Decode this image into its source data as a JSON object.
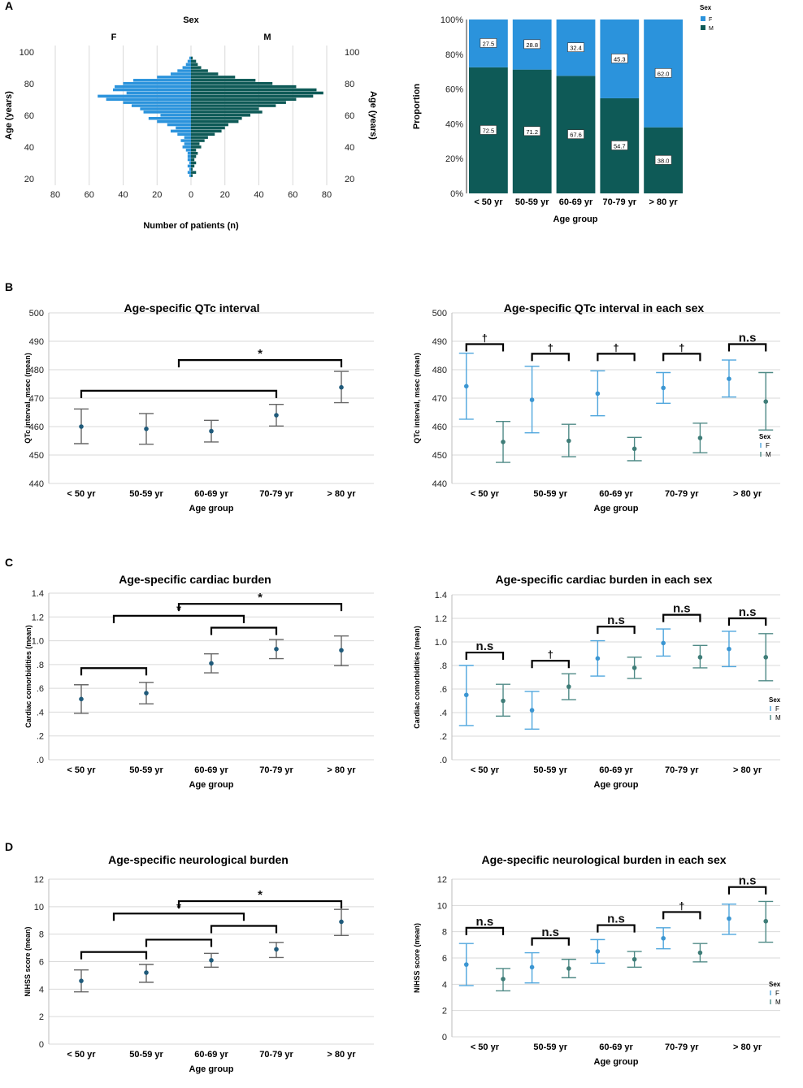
{
  "colors": {
    "female": "#2b93dc",
    "male": "#0e5a57",
    "mean_point": "#1f5a7a",
    "errorbar": "#666666",
    "grid": "#d9d9d9",
    "bracket": "#000000"
  },
  "panel_labels": [
    "A",
    "B",
    "C",
    "D"
  ],
  "age_groups": [
    "< 50 yr",
    "50-59 yr",
    "60-69 yr",
    "70-79 yr",
    "> 80 yr"
  ],
  "chart_data": [
    {
      "id": "A1",
      "type": "bar",
      "title": "Sex",
      "subtype": "population-pyramid",
      "left_label": "F",
      "right_label": "M",
      "xlabel": "Number of patients (n)",
      "ylabel_left": "Age (years)",
      "ylabel_right": "Age (years)",
      "xticks": [
        "80",
        "60",
        "40",
        "20",
        "0",
        "20",
        "40",
        "60",
        "80"
      ],
      "yticks": [
        "20",
        "40",
        "60",
        "80",
        "100"
      ],
      "ylim": [
        16,
        104
      ],
      "xlim": [
        -80,
        80
      ],
      "ages": [
        22,
        24,
        26,
        28,
        30,
        32,
        34,
        36,
        38,
        40,
        42,
        44,
        46,
        48,
        50,
        52,
        54,
        56,
        58,
        60,
        62,
        64,
        66,
        68,
        70,
        72,
        74,
        76,
        78,
        80,
        82,
        84,
        86,
        88,
        90,
        92,
        94,
        96
      ],
      "female": [
        1,
        2,
        1,
        2,
        1,
        2,
        2,
        2,
        3,
        5,
        4,
        6,
        4,
        8,
        12,
        9,
        14,
        20,
        25,
        18,
        28,
        30,
        35,
        40,
        50,
        55,
        38,
        46,
        45,
        40,
        34,
        20,
        12,
        8,
        5,
        3,
        2,
        1
      ],
      "male": [
        1,
        3,
        1,
        2,
        3,
        2,
        3,
        4,
        3,
        6,
        5,
        8,
        10,
        14,
        18,
        20,
        22,
        28,
        30,
        35,
        42,
        40,
        50,
        56,
        62,
        72,
        78,
        74,
        62,
        48,
        38,
        26,
        16,
        10,
        6,
        4,
        3,
        1
      ]
    },
    {
      "id": "A2",
      "type": "bar",
      "subtype": "stacked-100",
      "legend_title": "Sex",
      "legend": [
        "F",
        "M"
      ],
      "xlabel": "Age group",
      "ylabel": "Proportion",
      "yticks": [
        "0%",
        "20%",
        "40%",
        "60%",
        "80%",
        "100%"
      ],
      "ylim": [
        0,
        100
      ],
      "categories": [
        "< 50 yr",
        "50-59 yr",
        "60-69 yr",
        "70-79 yr",
        "> 80 yr"
      ],
      "series": [
        {
          "name": "M",
          "values": [
            72.5,
            71.2,
            67.6,
            54.7,
            38.0
          ],
          "labels": [
            "72.5",
            "71.2",
            "67.6",
            "54.7",
            "38.0"
          ]
        },
        {
          "name": "F",
          "values": [
            27.5,
            28.8,
            32.4,
            45.3,
            62.0
          ],
          "labels": [
            "27.5",
            "28.8",
            "32.4",
            "45.3",
            "62.0"
          ]
        }
      ]
    },
    {
      "id": "B1",
      "type": "scatter",
      "subtype": "errorbar",
      "title": "Age-specific QTc interval",
      "xlabel": "Age group",
      "ylabel": "QTc interval, msec (mean)",
      "yticks": [
        "440",
        "450",
        "460",
        "470",
        "480",
        "490",
        "500"
      ],
      "ylim": [
        440,
        500
      ],
      "categories": [
        "< 50 yr",
        "50-59 yr",
        "60-69 yr",
        "70-79 yr",
        "> 80 yr"
      ],
      "series": [
        {
          "name": "All",
          "mean": [
            460,
            459.2,
            458.4,
            464,
            473.8
          ],
          "low": [
            454,
            453.8,
            454.6,
            460.2,
            468.4
          ],
          "high": [
            466.2,
            464.6,
            462.2,
            467.8,
            479.4
          ]
        }
      ],
      "annotations": [
        {
          "from": 0,
          "to": 3,
          "y": 472.6,
          "text": ""
        },
        {
          "from": 1.5,
          "to": 4,
          "y": 483.4,
          "text": "*"
        }
      ]
    },
    {
      "id": "B2",
      "type": "scatter",
      "subtype": "errorbar",
      "title": "Age-specific QTc interval in each sex",
      "xlabel": "Age group",
      "ylabel": "QTc interval, msec (mean)",
      "legend_title": "Sex",
      "legend": [
        "F",
        "M"
      ],
      "yticks": [
        "440",
        "450",
        "460",
        "470",
        "480",
        "490",
        "500"
      ],
      "ylim": [
        440,
        500
      ],
      "categories": [
        "< 50 yr",
        "50-59 yr",
        "60-69 yr",
        "70-79 yr",
        "> 80 yr"
      ],
      "series": [
        {
          "name": "F",
          "mean": [
            474.2,
            469.4,
            471.6,
            473.6,
            476.8
          ],
          "low": [
            462.6,
            457.8,
            463.8,
            468.2,
            470.4
          ],
          "high": [
            485.8,
            481.2,
            479.6,
            479,
            483.4
          ]
        },
        {
          "name": "M",
          "mean": [
            454.6,
            455,
            452.2,
            456,
            468.8
          ],
          "low": [
            447.4,
            449.4,
            448,
            450.8,
            458.8
          ],
          "high": [
            461.8,
            460.8,
            456.2,
            461.2,
            479
          ]
        }
      ],
      "annotations": [
        {
          "from": 0,
          "to": 0,
          "y": 489,
          "text": "†"
        },
        {
          "from": 1,
          "to": 1,
          "y": 485.6,
          "text": "†"
        },
        {
          "from": 2,
          "to": 2,
          "y": 485.6,
          "text": "†"
        },
        {
          "from": 3,
          "to": 3,
          "y": 485.6,
          "text": "†"
        },
        {
          "from": 4,
          "to": 4,
          "y": 489,
          "text": "n.s"
        }
      ]
    },
    {
      "id": "C1",
      "type": "scatter",
      "subtype": "errorbar",
      "title": "Age-specific cardiac burden",
      "xlabel": "Age group",
      "ylabel": "Cardiac comorbidities (mean)",
      "yticks": [
        ".0",
        ".2",
        ".4",
        ".6",
        ".8",
        "1.0",
        "1.2",
        "1.4"
      ],
      "ylim": [
        0,
        1.4
      ],
      "categories": [
        "< 50 yr",
        "50-59 yr",
        "60-69 yr",
        "70-79 yr",
        "> 80 yr"
      ],
      "series": [
        {
          "name": "All",
          "mean": [
            0.51,
            0.56,
            0.81,
            0.93,
            0.92
          ],
          "low": [
            0.39,
            0.47,
            0.73,
            0.85,
            0.79
          ],
          "high": [
            0.63,
            0.65,
            0.89,
            1.01,
            1.04
          ]
        }
      ],
      "annotations": [
        {
          "from": 0,
          "to": 1,
          "y": 0.77,
          "text": ""
        },
        {
          "from": 2,
          "to": 3,
          "y": 1.11,
          "text": ""
        },
        {
          "from": 0.5,
          "to": 2.5,
          "y": 1.21,
          "text": "*"
        },
        {
          "from": 1.5,
          "to": 4,
          "y": 1.31,
          "text": "*"
        }
      ]
    },
    {
      "id": "C2",
      "type": "scatter",
      "subtype": "errorbar",
      "title": "Age-specific cardiac burden in each sex",
      "xlabel": "Age group",
      "ylabel": "Cardiac comorbidities (mean)",
      "legend_title": "Sex",
      "legend": [
        "F",
        "M"
      ],
      "yticks": [
        ".0",
        ".2",
        ".4",
        ".6",
        ".8",
        "1.0",
        "1.2",
        "1.4"
      ],
      "ylim": [
        0,
        1.4
      ],
      "categories": [
        "< 50 yr",
        "50-59 yr",
        "60-69 yr",
        "70-79 yr",
        "> 80 yr"
      ],
      "series": [
        {
          "name": "F",
          "mean": [
            0.55,
            0.42,
            0.86,
            0.99,
            0.94
          ],
          "low": [
            0.29,
            0.26,
            0.71,
            0.88,
            0.79
          ],
          "high": [
            0.8,
            0.58,
            1.01,
            1.11,
            1.09
          ]
        },
        {
          "name": "M",
          "mean": [
            0.5,
            0.62,
            0.78,
            0.87,
            0.87
          ],
          "low": [
            0.37,
            0.51,
            0.69,
            0.78,
            0.67
          ],
          "high": [
            0.64,
            0.73,
            0.87,
            0.97,
            1.07
          ]
        }
      ],
      "annotations": [
        {
          "from": 0,
          "to": 0,
          "y": 0.91,
          "text": "n.s"
        },
        {
          "from": 1,
          "to": 1,
          "y": 0.84,
          "text": "†"
        },
        {
          "from": 2,
          "to": 2,
          "y": 1.13,
          "text": "n.s"
        },
        {
          "from": 3,
          "to": 3,
          "y": 1.23,
          "text": "n.s"
        },
        {
          "from": 4,
          "to": 4,
          "y": 1.2,
          "text": "n.s"
        }
      ]
    },
    {
      "id": "D1",
      "type": "scatter",
      "subtype": "errorbar",
      "title": "Age-specific neurological burden",
      "xlabel": "Age group",
      "ylabel": "NIHSS score (mean)",
      "yticks": [
        "0",
        "2",
        "4",
        "6",
        "8",
        "10",
        "12"
      ],
      "ylim": [
        0,
        12
      ],
      "categories": [
        "< 50 yr",
        "50-59 yr",
        "60-69 yr",
        "70-79 yr",
        "> 80 yr"
      ],
      "series": [
        {
          "name": "All",
          "mean": [
            4.6,
            5.2,
            6.1,
            6.9,
            8.9
          ],
          "low": [
            3.8,
            4.5,
            5.6,
            6.3,
            7.9
          ],
          "high": [
            5.4,
            5.8,
            6.6,
            7.4,
            9.8
          ]
        }
      ],
      "annotations": [
        {
          "from": 0,
          "to": 1,
          "y": 6.7,
          "text": ""
        },
        {
          "from": 1,
          "to": 2,
          "y": 7.6,
          "text": ""
        },
        {
          "from": 2,
          "to": 3,
          "y": 8.6,
          "text": ""
        },
        {
          "from": 0.5,
          "to": 2.5,
          "y": 9.5,
          "text": "*"
        },
        {
          "from": 1.5,
          "to": 4,
          "y": 10.4,
          "text": "*"
        }
      ]
    },
    {
      "id": "D2",
      "type": "scatter",
      "subtype": "errorbar",
      "title": "Age-specific neurological burden in each sex",
      "xlabel": "Age group",
      "ylabel": "NIHSS score (mean)",
      "legend_title": "Sex",
      "legend": [
        "F",
        "M"
      ],
      "yticks": [
        "0",
        "2",
        "4",
        "6",
        "8",
        "10",
        "12"
      ],
      "ylim": [
        0,
        12
      ],
      "categories": [
        "< 50 yr",
        "50-59 yr",
        "60-69 yr",
        "70-79 yr",
        "> 80 yr"
      ],
      "series": [
        {
          "name": "F",
          "mean": [
            5.5,
            5.3,
            6.5,
            7.5,
            9.0
          ],
          "low": [
            3.9,
            4.1,
            5.6,
            6.7,
            7.8
          ],
          "high": [
            7.1,
            6.4,
            7.4,
            8.3,
            10.1
          ]
        },
        {
          "name": "M",
          "mean": [
            4.4,
            5.2,
            5.9,
            6.4,
            8.8
          ],
          "low": [
            3.5,
            4.5,
            5.3,
            5.7,
            7.2
          ],
          "high": [
            5.2,
            5.9,
            6.5,
            7.1,
            10.3
          ]
        }
      ],
      "annotations": [
        {
          "from": 0,
          "to": 0,
          "y": 8.3,
          "text": "n.s"
        },
        {
          "from": 1,
          "to": 1,
          "y": 7.5,
          "text": "n.s"
        },
        {
          "from": 2,
          "to": 2,
          "y": 8.5,
          "text": "n.s"
        },
        {
          "from": 3,
          "to": 3,
          "y": 9.5,
          "text": "†"
        },
        {
          "from": 4,
          "to": 4,
          "y": 11.4,
          "text": "n.s"
        }
      ]
    }
  ]
}
